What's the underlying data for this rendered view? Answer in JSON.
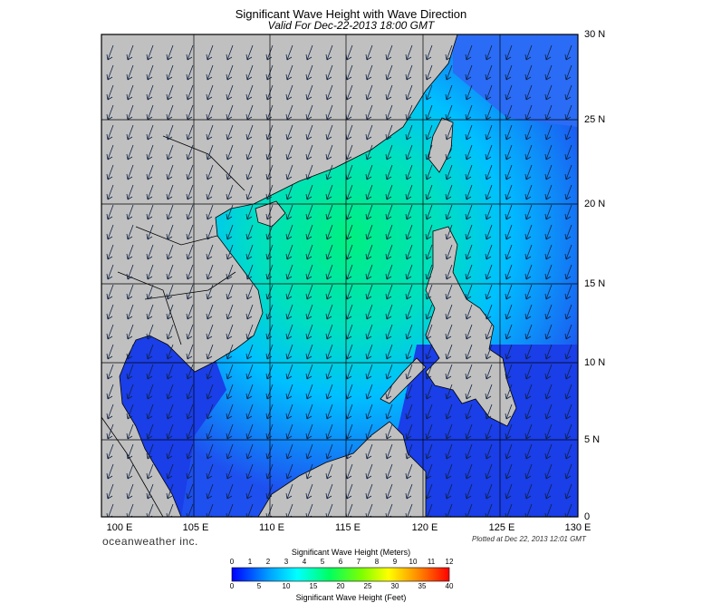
{
  "title": "Significant Wave Height with Wave Direction",
  "subtitle": "Valid For Dec-22-2013 18:00 GMT",
  "brand": "oceanweather inc.",
  "plotted": "Plotted at Dec 22, 2013 12:01 GMT",
  "lat_labels": [
    "30 N",
    "25 N",
    "20 N",
    "15 N",
    "10 N",
    "5 N",
    "0"
  ],
  "lon_labels": [
    "100 E",
    "105 E",
    "110 E",
    "115 E",
    "120 E",
    "125 E",
    "130 E"
  ],
  "colorbar": {
    "top_title": "Significant Wave Height (Meters)",
    "bottom_title": "Significant Wave Height (Feet)",
    "meters": [
      "0",
      "1",
      "2",
      "3",
      "4",
      "5",
      "6",
      "7",
      "8",
      "9",
      "10",
      "11",
      "12"
    ],
    "feet": [
      "0",
      "5",
      "10",
      "15",
      "20",
      "25",
      "30",
      "35",
      "40"
    ],
    "colors": [
      "#0000ff",
      "#0055ff",
      "#00aaff",
      "#00ffff",
      "#00ff80",
      "#40ff00",
      "#a0ff00",
      "#ffff00",
      "#ffc000",
      "#ff8000",
      "#ff4000",
      "#ff0000"
    ]
  },
  "colors": {
    "land": "#c0c0c0",
    "sea_low": "#1e50f0",
    "sea_mid": "#00c8ff",
    "sea_high": "#00f07a",
    "arrow": "#102040"
  }
}
